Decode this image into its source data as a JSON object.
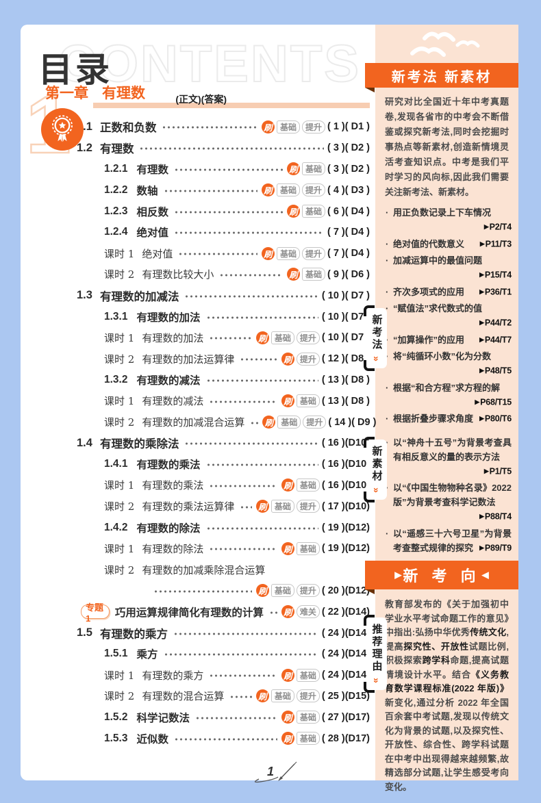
{
  "page": {
    "title": "目录",
    "watermark": "CONTENTS",
    "header_note": "(正文)(答案)",
    "page_number": "1"
  },
  "chapter": {
    "number": "1",
    "label": "第一章",
    "title": "有理数"
  },
  "badges": {
    "shua": "刷",
    "jichu": "基础",
    "tisheng": "提升",
    "nanguan": "难关"
  },
  "toc": [
    {
      "num": "1.1",
      "title": "正数和负数",
      "level": "s1",
      "badges": [
        "shua",
        "jichu",
        "tisheng"
      ],
      "ref": "( 1 )( D1 )"
    },
    {
      "num": "1.2",
      "title": "有理数",
      "level": "s1",
      "badges": [],
      "ref": "( 3 )( D2 )"
    },
    {
      "num": "1.2.1",
      "title": "有理数",
      "level": "s2",
      "badges": [
        "shua",
        "jichu"
      ],
      "ref": "( 3 )( D2 )"
    },
    {
      "num": "1.2.2",
      "title": "数轴",
      "level": "s2",
      "badges": [
        "shua",
        "jichu",
        "tisheng"
      ],
      "ref": "( 4 )( D3 )"
    },
    {
      "num": "1.2.3",
      "title": "相反数",
      "level": "s2",
      "badges": [
        "shua",
        "jichu"
      ],
      "ref": "( 6 )( D4 )"
    },
    {
      "num": "1.2.4",
      "title": "绝对值",
      "level": "s2",
      "badges": [],
      "ref": "( 7 )( D4 )"
    },
    {
      "num": "课时 1",
      "title": "绝对值",
      "level": "lesson",
      "badges": [
        "shua",
        "jichu",
        "tisheng"
      ],
      "ref": "( 7 )( D4 )"
    },
    {
      "num": "课时 2",
      "title": "有理数比较大小",
      "level": "lesson",
      "badges": [
        "shua",
        "jichu"
      ],
      "ref": "( 9 )( D6 )"
    },
    {
      "num": "1.3",
      "title": "有理数的加减法",
      "level": "s1",
      "badges": [],
      "ref": "( 10 )( D7 )"
    },
    {
      "num": "1.3.1",
      "title": "有理数的加法",
      "level": "s2",
      "badges": [],
      "ref": "( 10 )( D7 )"
    },
    {
      "num": "课时 1",
      "title": "有理数的加法",
      "level": "lesson",
      "badges": [
        "shua",
        "jichu",
        "tisheng"
      ],
      "ref": "( 10 )( D7 )"
    },
    {
      "num": "课时 2",
      "title": "有理数的加法运算律",
      "level": "lesson",
      "badges": [
        "shua",
        "tisheng"
      ],
      "ref": "( 12 )( D8 )"
    },
    {
      "num": "1.3.2",
      "title": "有理数的减法",
      "level": "s2",
      "badges": [],
      "ref": "( 13 )( D8 )"
    },
    {
      "num": "课时 1",
      "title": "有理数的减法",
      "level": "lesson",
      "badges": [
        "shua",
        "jichu"
      ],
      "ref": "( 13 )( D8 )"
    },
    {
      "num": "课时 2",
      "title": "有理数的加减混合运算",
      "level": "lesson",
      "badges": [
        "shua",
        "jichu",
        "tisheng"
      ],
      "ref": "( 14 )( D9 )"
    },
    {
      "num": "1.4",
      "title": "有理数的乘除法",
      "level": "s1",
      "badges": [],
      "ref": "( 16 )(D10)"
    },
    {
      "num": "1.4.1",
      "title": "有理数的乘法",
      "level": "s2",
      "badges": [],
      "ref": "( 16 )(D10)"
    },
    {
      "num": "课时 1",
      "title": "有理数的乘法",
      "level": "lesson",
      "badges": [
        "shua",
        "jichu"
      ],
      "ref": "( 16 )(D10)"
    },
    {
      "num": "课时 2",
      "title": "有理数的乘法运算律",
      "level": "lesson",
      "badges": [
        "shua",
        "jichu",
        "tisheng"
      ],
      "ref": "( 17 )(D10)"
    },
    {
      "num": "1.4.2",
      "title": "有理数的除法",
      "level": "s2",
      "badges": [],
      "ref": "( 19 )(D12)"
    },
    {
      "num": "课时 1",
      "title": "有理数的除法",
      "level": "lesson",
      "badges": [
        "shua",
        "jichu"
      ],
      "ref": "( 19 )(D12)"
    },
    {
      "num": "课时 2",
      "title": "有理数的加减乘除混合运算",
      "level": "lesson",
      "badges": [
        "shua",
        "jichu",
        "tisheng"
      ],
      "ref": "( 20 )(D12)",
      "wrap": true
    },
    {
      "num": "专题1",
      "title": "巧用运算规律简化有理数的计算",
      "level": "special",
      "badges": [
        "shua",
        "nanguan"
      ],
      "ref": "( 22 )(D14)"
    },
    {
      "num": "1.5",
      "title": "有理数的乘方",
      "level": "s1",
      "badges": [],
      "ref": "( 24 )(D14)"
    },
    {
      "num": "1.5.1",
      "title": "乘方",
      "level": "s2",
      "badges": [],
      "ref": "( 24 )(D14)"
    },
    {
      "num": "课时 1",
      "title": "有理数的乘方",
      "level": "lesson",
      "badges": [
        "shua",
        "jichu"
      ],
      "ref": "( 24 )(D14)"
    },
    {
      "num": "课时 2",
      "title": "有理数的混合运算",
      "level": "lesson",
      "badges": [
        "shua",
        "jichu",
        "tisheng"
      ],
      "ref": "( 25 )(D15)"
    },
    {
      "num": "1.5.2",
      "title": "科学记数法",
      "level": "s2",
      "badges": [
        "shua",
        "jichu"
      ],
      "ref": "( 27 )(D17)"
    },
    {
      "num": "1.5.3",
      "title": "近似数",
      "level": "s2",
      "badges": [
        "shua",
        "jichu"
      ],
      "ref": "( 28 )(D17)"
    }
  ],
  "sidebar": {
    "banner_top": "新考法  新素材",
    "intro": "研究对比全国近十年中考真题卷,发现各省市的中考会不断借鉴或探究新考法,同时会挖掘时事热点等新素材,创造新情境灵活考查知识点。中考是我们平时学习的风向标,因此我们需要关注新考法、新素材。",
    "tabs": [
      {
        "label": "新考法"
      },
      {
        "label": "新素材"
      },
      {
        "label": "推荐理由"
      }
    ],
    "chevron": "»",
    "ref_arrow": "▶",
    "new_method_points": [
      {
        "text": "用正负数记录上下车情况",
        "ref": "P2/T4"
      },
      {
        "text": "绝对值的代数意义",
        "ref": "P11/T3"
      },
      {
        "text": "加减运算中的最值问题",
        "ref": "P15/T4"
      },
      {
        "text": "齐次多项式的应用",
        "ref": "P36/T1"
      },
      {
        "text": "“赋值法”求代数式的值",
        "ref": "P44/T2"
      },
      {
        "text": "“加算操作”的应用",
        "ref": "P44/T7"
      },
      {
        "text": "将“纯循环小数”化为分数",
        "ref": "P48/T5"
      },
      {
        "text": "根据“和合方程”求方程的解",
        "ref": "P68/T15"
      },
      {
        "text": "根据折叠步骤求角度",
        "ref": "P80/T6"
      }
    ],
    "new_material_points": [
      {
        "text": "以“神舟十五号”为背景考查具有相反意义的量的表示方法",
        "ref": "P1/T5"
      },
      {
        "text": "以“《中国生物物种名录》2022 版”为背景考查科学记数法",
        "ref": "P88/T4"
      },
      {
        "text": "以“遥感三十六号卫星”为背景考查整式规律的探究",
        "ref": "P89/T9"
      }
    ],
    "banner_mid": {
      "left_arrow": "▶",
      "text": "新 考 向",
      "right_arrow": "◀"
    },
    "reason_segments": [
      {
        "text": "教育部发布的《关于加强初中学业水平考试命题工作的意见》中指出:弘扬中华优秀",
        "bold": false
      },
      {
        "text": "传统文化",
        "bold": true
      },
      {
        "text": ",提高",
        "bold": false
      },
      {
        "text": "探究性、开放性",
        "bold": true
      },
      {
        "text": "试题比例,积极探索",
        "bold": false
      },
      {
        "text": "跨学科",
        "bold": true
      },
      {
        "text": "命题,提高试题情境设计水平。结合",
        "bold": false
      },
      {
        "text": "《义务教育数学课程标准(2022 年版)》",
        "bold": true
      },
      {
        "text": "新变化,通过分析 2022 年全国百余套中考试题,发现以传统文化为背景的试题,以及探究性、开放性、综合性、跨学科试题在中考中出现得越来越频繁,故精选部分试题,让学生感受考向变化。",
        "bold": false
      }
    ]
  },
  "colors": {
    "accent": "#f2641f",
    "panel": "#fbe3d3",
    "frame": "#abc7f1",
    "bar": "#f7cdb2"
  }
}
